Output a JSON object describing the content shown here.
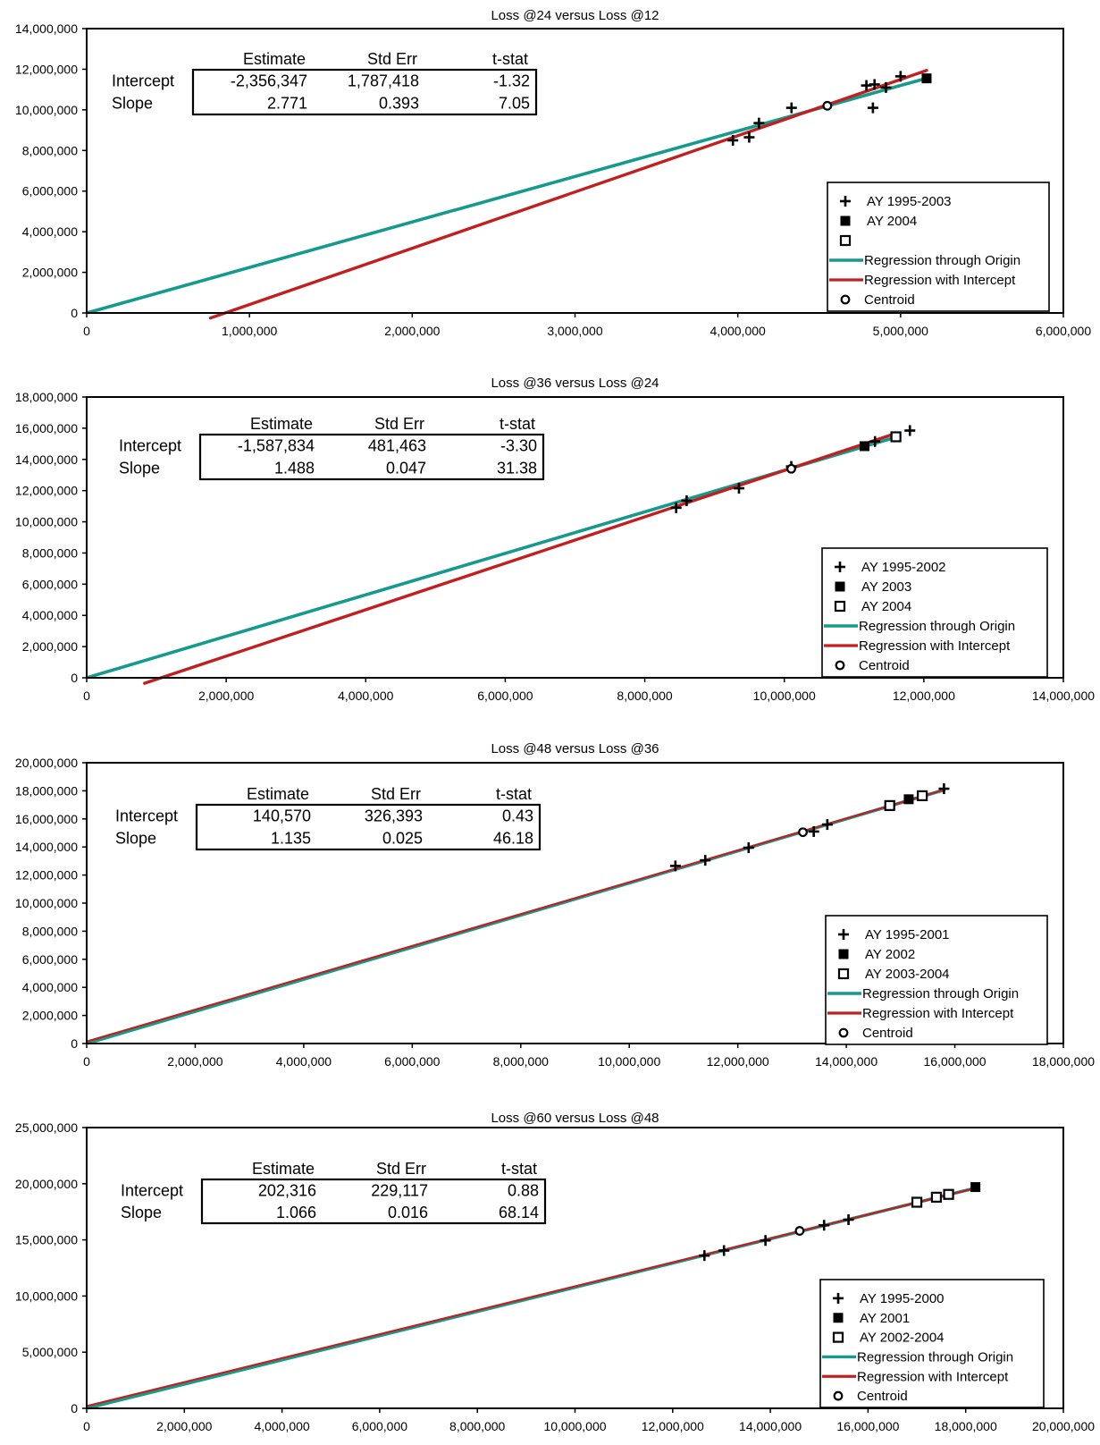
{
  "colors": {
    "origin_line": "#159a8c",
    "intercept_line": "#c0201f",
    "marker": "#000000",
    "frame": "#000000"
  },
  "chart_data": [
    {
      "type": "scatter",
      "title": "Loss @24 versus Loss @12",
      "xlim": [
        0,
        6000000
      ],
      "ylim": [
        0,
        14000000
      ],
      "xticks": [
        0,
        1000000,
        2000000,
        3000000,
        4000000,
        5000000,
        6000000
      ],
      "xtick_labels": [
        "0",
        "1,000,000",
        "2,000,000",
        "3,000,000",
        "4,000,000",
        "5,000,000",
        "6,000,000"
      ],
      "yticks": [
        0,
        2000000,
        4000000,
        6000000,
        8000000,
        10000000,
        12000000,
        14000000
      ],
      "ytick_labels": [
        "0",
        "2,000,000",
        "4,000,000",
        "6,000,000",
        "8,000,000",
        "10,000,000",
        "12,000,000",
        "14,000,000"
      ],
      "stats": {
        "headers": [
          "Estimate",
          "Std Err",
          "t-stat"
        ],
        "rows": [
          {
            "label": "Intercept",
            "values": [
              "-2,356,347",
              "1,787,418",
              "-1.32"
            ]
          },
          {
            "label": "Slope",
            "values": [
              "2.771",
              "0.393",
              "7.05"
            ]
          }
        ]
      },
      "legend": [
        "AY 1995-2003",
        "AY 2004",
        "",
        "Regression through Origin",
        "Regression with Intercept",
        "Centroid"
      ],
      "legend_position": "bottom-right",
      "points": [
        {
          "series": 0,
          "x": 3970000,
          "y": 8500000
        },
        {
          "series": 0,
          "x": 4070000,
          "y": 8650000
        },
        {
          "series": 0,
          "x": 4130000,
          "y": 9350000
        },
        {
          "series": 0,
          "x": 4330000,
          "y": 10100000
        },
        {
          "series": 0,
          "x": 4790000,
          "y": 11200000
        },
        {
          "series": 0,
          "x": 4840000,
          "y": 11250000
        },
        {
          "series": 0,
          "x": 4910000,
          "y": 11100000
        },
        {
          "series": 0,
          "x": 4830000,
          "y": 10100000
        },
        {
          "series": 0,
          "x": 5000000,
          "y": 11650000
        },
        {
          "series": 1,
          "x": 5160000,
          "y": 11550000
        }
      ],
      "centroid": {
        "x": 4550000,
        "y": 10200000
      },
      "origin_slope": 2.24,
      "origin_line_range": [
        0,
        5160000
      ],
      "intercept_line": {
        "intercept": -2356347,
        "slope": 2.771,
        "x_range": [
          760000,
          5160000
        ]
      }
    },
    {
      "type": "scatter",
      "title": "Loss @36 versus Loss @24",
      "xlim": [
        0,
        14000000
      ],
      "ylim": [
        0,
        18000000
      ],
      "xticks": [
        0,
        2000000,
        4000000,
        6000000,
        8000000,
        10000000,
        12000000,
        14000000
      ],
      "xtick_labels": [
        "0",
        "2,000,000",
        "4,000,000",
        "6,000,000",
        "8,000,000",
        "10,000,000",
        "12,000,000",
        "14,000,000"
      ],
      "yticks": [
        0,
        2000000,
        4000000,
        6000000,
        8000000,
        10000000,
        12000000,
        14000000,
        16000000,
        18000000
      ],
      "ytick_labels": [
        "0",
        "2,000,000",
        "4,000,000",
        "6,000,000",
        "8,000,000",
        "10,000,000",
        "12,000,000",
        "14,000,000",
        "16,000,000",
        "18,000,000"
      ],
      "stats": {
        "headers": [
          "Estimate",
          "Std Err",
          "t-stat"
        ],
        "rows": [
          {
            "label": "Intercept",
            "values": [
              "-1,587,834",
              "481,463",
              "-3.30"
            ]
          },
          {
            "label": "Slope",
            "values": [
              "1.488",
              "0.047",
              "31.38"
            ]
          }
        ]
      },
      "legend": [
        "AY 1995-2002",
        "AY 2003",
        "AY 2004",
        "Regression through Origin",
        "Regression with Intercept",
        "Centroid"
      ],
      "legend_position": "bottom-right",
      "points": [
        {
          "series": 0,
          "x": 8450000,
          "y": 10900000
        },
        {
          "series": 0,
          "x": 8600000,
          "y": 11350000
        },
        {
          "series": 0,
          "x": 9350000,
          "y": 12150000
        },
        {
          "series": 0,
          "x": 10100000,
          "y": 13550000
        },
        {
          "series": 0,
          "x": 11300000,
          "y": 15150000
        },
        {
          "series": 0,
          "x": 11800000,
          "y": 15850000
        },
        {
          "series": 1,
          "x": 11150000,
          "y": 14850000
        },
        {
          "series": 2,
          "x": 11600000,
          "y": 15450000
        }
      ],
      "centroid": {
        "x": 10100000,
        "y": 13400000
      },
      "origin_slope": 1.33,
      "origin_line_range": [
        0,
        11600000
      ],
      "intercept_line": {
        "intercept": -1587834,
        "slope": 1.488,
        "x_range": [
          830000,
          11600000
        ]
      }
    },
    {
      "type": "scatter",
      "title": "Loss @48 versus Loss @36",
      "xlim": [
        0,
        18000000
      ],
      "ylim": [
        0,
        20000000
      ],
      "xticks": [
        0,
        2000000,
        4000000,
        6000000,
        8000000,
        10000000,
        12000000,
        14000000,
        16000000,
        18000000
      ],
      "xtick_labels": [
        "0",
        "2,000,000",
        "4,000,000",
        "6,000,000",
        "8,000,000",
        "10,000,000",
        "12,000,000",
        "14,000,000",
        "16,000,000",
        "18,000,000"
      ],
      "yticks": [
        0,
        2000000,
        4000000,
        6000000,
        8000000,
        10000000,
        12000000,
        14000000,
        16000000,
        18000000,
        20000000
      ],
      "ytick_labels": [
        "0",
        "2,000,000",
        "4,000,000",
        "6,000,000",
        "8,000,000",
        "10,000,000",
        "12,000,000",
        "14,000,000",
        "16,000,000",
        "18,000,000",
        "20,000,000"
      ],
      "stats": {
        "headers": [
          "Estimate",
          "Std Err",
          "t-stat"
        ],
        "rows": [
          {
            "label": "Intercept",
            "values": [
              "140,570",
              "326,393",
              "0.43"
            ]
          },
          {
            "label": "Slope",
            "values": [
              "1.135",
              "0.025",
              "46.18"
            ]
          }
        ]
      },
      "legend": [
        "AY 1995-2001",
        "AY 2002",
        "AY 2003-2004",
        "Regression through Origin",
        "Regression with Intercept",
        "Centroid"
      ],
      "legend_position": "bottom-right",
      "points": [
        {
          "series": 0,
          "x": 10850000,
          "y": 12650000
        },
        {
          "series": 0,
          "x": 11400000,
          "y": 13050000
        },
        {
          "series": 0,
          "x": 12200000,
          "y": 13950000
        },
        {
          "series": 0,
          "x": 13400000,
          "y": 15100000
        },
        {
          "series": 0,
          "x": 13650000,
          "y": 15600000
        },
        {
          "series": 0,
          "x": 15800000,
          "y": 18150000
        },
        {
          "series": 1,
          "x": 15150000,
          "y": 17400000
        },
        {
          "series": 2,
          "x": 14800000,
          "y": 16950000
        },
        {
          "series": 2,
          "x": 15400000,
          "y": 17650000
        }
      ],
      "centroid": {
        "x": 13200000,
        "y": 15050000
      },
      "origin_slope": 1.143,
      "origin_line_range": [
        0,
        15800000
      ],
      "intercept_line": {
        "intercept": 140570,
        "slope": 1.135,
        "x_range": [
          0,
          15800000
        ]
      }
    },
    {
      "type": "scatter",
      "title": "Loss @60 versus Loss @48",
      "xlim": [
        0,
        20000000
      ],
      "ylim": [
        0,
        25000000
      ],
      "xticks": [
        0,
        2000000,
        4000000,
        6000000,
        8000000,
        10000000,
        12000000,
        14000000,
        16000000,
        18000000,
        20000000
      ],
      "xtick_labels": [
        "0",
        "2,000,000",
        "4,000,000",
        "6,000,000",
        "8,000,000",
        "10,000,000",
        "12,000,000",
        "14,000,000",
        "16,000,000",
        "18,000,000",
        "20,000,000"
      ],
      "yticks": [
        0,
        5000000,
        10000000,
        15000000,
        20000000,
        25000000
      ],
      "ytick_labels": [
        "0",
        "5,000,000",
        "10,000,000",
        "15,000,000",
        "20,000,000",
        "25,000,000"
      ],
      "stats": {
        "headers": [
          "Estimate",
          "Std Err",
          "t-stat"
        ],
        "rows": [
          {
            "label": "Intercept",
            "values": [
              "202,316",
              "229,117",
              "0.88"
            ]
          },
          {
            "label": "Slope",
            "values": [
              "1.066",
              "0.016",
              "68.14"
            ]
          }
        ]
      },
      "legend": [
        "AY 1995-2000",
        "AY 2001",
        "AY 2002-2004",
        "Regression through Origin",
        "Regression with Intercept",
        "Centroid"
      ],
      "legend_position": "bottom-right",
      "points": [
        {
          "series": 0,
          "x": 12650000,
          "y": 13600000
        },
        {
          "series": 0,
          "x": 13050000,
          "y": 14050000
        },
        {
          "series": 0,
          "x": 13900000,
          "y": 14950000
        },
        {
          "series": 0,
          "x": 15100000,
          "y": 16300000
        },
        {
          "series": 0,
          "x": 15600000,
          "y": 16800000
        },
        {
          "series": 1,
          "x": 18200000,
          "y": 19700000
        },
        {
          "series": 2,
          "x": 17000000,
          "y": 18350000
        },
        {
          "series": 2,
          "x": 17400000,
          "y": 18800000
        },
        {
          "series": 2,
          "x": 17650000,
          "y": 19050000
        }
      ],
      "centroid": {
        "x": 14600000,
        "y": 15800000
      },
      "origin_slope": 1.078,
      "origin_line_range": [
        0,
        18200000
      ],
      "intercept_line": {
        "intercept": 202316,
        "slope": 1.066,
        "x_range": [
          0,
          18200000
        ]
      }
    }
  ]
}
